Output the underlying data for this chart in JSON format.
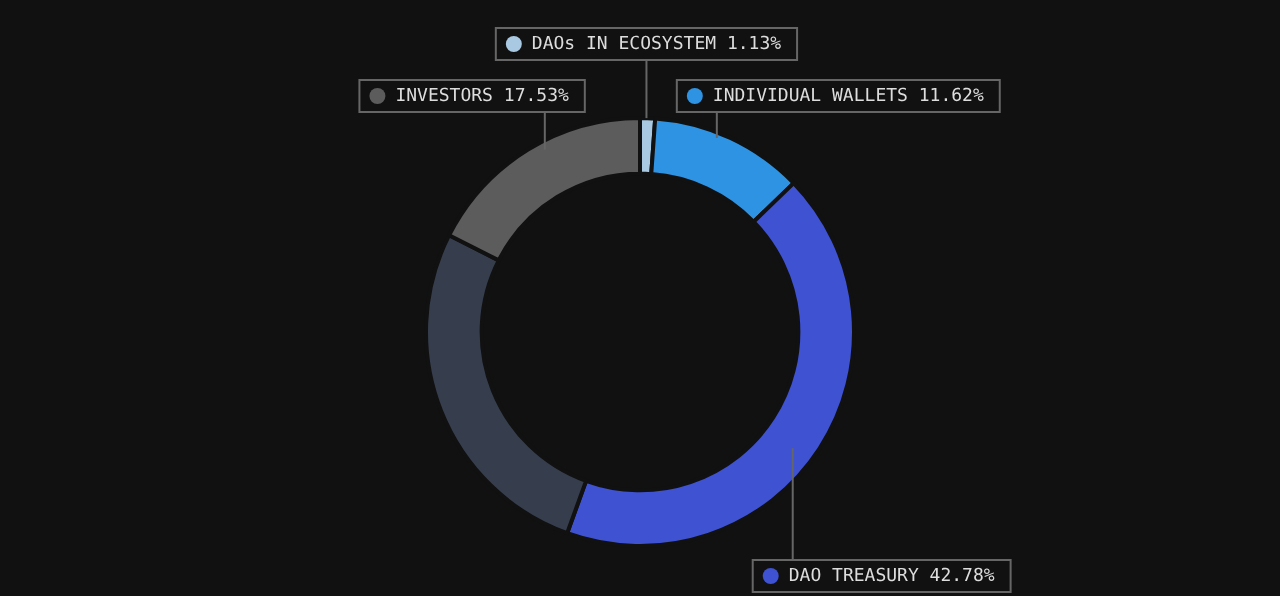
{
  "chart_data": {
    "type": "donut",
    "categories": [
      "DAOs IN ECOSYSTEM",
      "INDIVIDUAL WALLETS",
      "DAO TREASURY",
      null,
      "INVESTORS"
    ],
    "values": [
      1.13,
      11.62,
      42.78,
      26.94,
      17.53
    ],
    "colors": [
      "#a9c9e2",
      "#2e93e3",
      "#3e52d2",
      "#363e4e",
      "#5c5c5c"
    ],
    "value_labels": [
      "1.13%",
      "11.62%",
      "42.78%",
      null,
      "17.53%"
    ],
    "legend": "top"
  }
}
